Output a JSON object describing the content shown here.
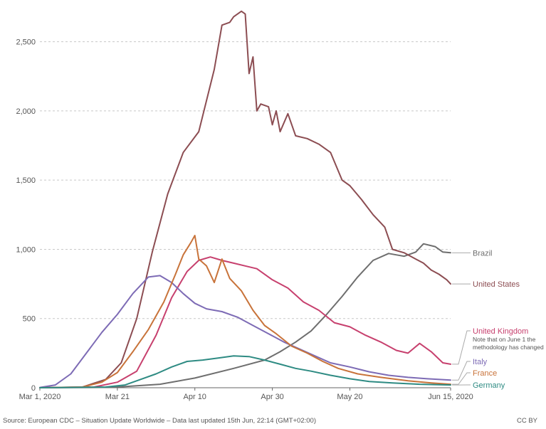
{
  "chart_data": {
    "type": "line",
    "title": "",
    "xlabel": "",
    "ylabel": "",
    "ylim": [
      0,
      2750
    ],
    "y_ticks": [
      0,
      500,
      1000,
      1500,
      2000,
      2500
    ],
    "y_tick_labels": [
      "0",
      "500",
      "1,000",
      "1,500",
      "2,000",
      "2,500"
    ],
    "x_range": [
      "2020-03-01",
      "2020-06-15"
    ],
    "x_ticks": [
      "2020-03-01",
      "2020-03-21",
      "2020-04-10",
      "2020-04-30",
      "2020-05-20",
      "2020-06-15"
    ],
    "x_tick_labels": [
      "Mar 1, 2020",
      "Mar 21",
      "Apr 10",
      "Apr 30",
      "May 20",
      "Jun 15, 2020"
    ],
    "grid": "horizontal dashed",
    "legend_placement": "right (direct labels at line ends)",
    "series": [
      {
        "name": "Brazil",
        "color": "#6e6e6e",
        "points": [
          [
            "2020-03-01",
            0
          ],
          [
            "2020-03-20",
            3
          ],
          [
            "2020-04-01",
            25
          ],
          [
            "2020-04-10",
            70
          ],
          [
            "2020-04-20",
            140
          ],
          [
            "2020-04-28",
            200
          ],
          [
            "2020-05-02",
            260
          ],
          [
            "2020-05-06",
            330
          ],
          [
            "2020-05-10",
            410
          ],
          [
            "2020-05-14",
            530
          ],
          [
            "2020-05-18",
            660
          ],
          [
            "2020-05-22",
            800
          ],
          [
            "2020-05-26",
            920
          ],
          [
            "2020-05-30",
            970
          ],
          [
            "2020-06-03",
            950
          ],
          [
            "2020-06-06",
            980
          ],
          [
            "2020-06-08",
            1040
          ],
          [
            "2020-06-11",
            1020
          ],
          [
            "2020-06-13",
            980
          ],
          [
            "2020-06-15",
            975
          ]
        ]
      },
      {
        "name": "United States",
        "color": "#8c4d52",
        "points": [
          [
            "2020-03-01",
            0
          ],
          [
            "2020-03-12",
            5
          ],
          [
            "2020-03-18",
            60
          ],
          [
            "2020-03-22",
            180
          ],
          [
            "2020-03-26",
            500
          ],
          [
            "2020-03-30",
            980
          ],
          [
            "2020-04-03",
            1400
          ],
          [
            "2020-04-07",
            1700
          ],
          [
            "2020-04-11",
            1850
          ],
          [
            "2020-04-15",
            2300
          ],
          [
            "2020-04-17",
            2620
          ],
          [
            "2020-04-19",
            2640
          ],
          [
            "2020-04-20",
            2680
          ],
          [
            "2020-04-22",
            2720
          ],
          [
            "2020-04-23",
            2700
          ],
          [
            "2020-04-24",
            2270
          ],
          [
            "2020-04-25",
            2390
          ],
          [
            "2020-04-26",
            2000
          ],
          [
            "2020-04-27",
            2050
          ],
          [
            "2020-04-29",
            2030
          ],
          [
            "2020-04-30",
            1900
          ],
          [
            "2020-05-01",
            2000
          ],
          [
            "2020-05-02",
            1850
          ],
          [
            "2020-05-04",
            1980
          ],
          [
            "2020-05-06",
            1820
          ],
          [
            "2020-05-09",
            1800
          ],
          [
            "2020-05-12",
            1760
          ],
          [
            "2020-05-15",
            1700
          ],
          [
            "2020-05-18",
            1500
          ],
          [
            "2020-05-20",
            1460
          ],
          [
            "2020-05-23",
            1360
          ],
          [
            "2020-05-26",
            1250
          ],
          [
            "2020-05-29",
            1160
          ],
          [
            "2020-05-31",
            1000
          ],
          [
            "2020-06-03",
            975
          ],
          [
            "2020-06-06",
            930
          ],
          [
            "2020-06-08",
            900
          ],
          [
            "2020-06-10",
            850
          ],
          [
            "2020-06-12",
            820
          ],
          [
            "2020-06-14",
            780
          ],
          [
            "2020-06-15",
            750
          ]
        ]
      },
      {
        "name": "United Kingdom",
        "color": "#c7406e",
        "points": [
          [
            "2020-03-01",
            0
          ],
          [
            "2020-03-15",
            5
          ],
          [
            "2020-03-21",
            40
          ],
          [
            "2020-03-26",
            120
          ],
          [
            "2020-03-31",
            380
          ],
          [
            "2020-04-04",
            650
          ],
          [
            "2020-04-08",
            840
          ],
          [
            "2020-04-11",
            920
          ],
          [
            "2020-04-14",
            945
          ],
          [
            "2020-04-17",
            920
          ],
          [
            "2020-04-20",
            900
          ],
          [
            "2020-04-23",
            880
          ],
          [
            "2020-04-26",
            860
          ],
          [
            "2020-04-30",
            780
          ],
          [
            "2020-05-04",
            720
          ],
          [
            "2020-05-08",
            620
          ],
          [
            "2020-05-12",
            560
          ],
          [
            "2020-05-16",
            470
          ],
          [
            "2020-05-20",
            440
          ],
          [
            "2020-05-24",
            380
          ],
          [
            "2020-05-28",
            330
          ],
          [
            "2020-06-01",
            270
          ],
          [
            "2020-06-04",
            250
          ],
          [
            "2020-06-07",
            320
          ],
          [
            "2020-06-10",
            260
          ],
          [
            "2020-06-13",
            180
          ],
          [
            "2020-06-15",
            170
          ]
        ]
      },
      {
        "name": "Italy",
        "color": "#7d6bb5",
        "points": [
          [
            "2020-03-01",
            2
          ],
          [
            "2020-03-05",
            20
          ],
          [
            "2020-03-09",
            100
          ],
          [
            "2020-03-13",
            250
          ],
          [
            "2020-03-17",
            400
          ],
          [
            "2020-03-21",
            530
          ],
          [
            "2020-03-25",
            680
          ],
          [
            "2020-03-29",
            800
          ],
          [
            "2020-04-01",
            810
          ],
          [
            "2020-04-04",
            760
          ],
          [
            "2020-04-07",
            680
          ],
          [
            "2020-04-10",
            610
          ],
          [
            "2020-04-13",
            570
          ],
          [
            "2020-04-17",
            550
          ],
          [
            "2020-04-21",
            510
          ],
          [
            "2020-04-25",
            450
          ],
          [
            "2020-04-29",
            390
          ],
          [
            "2020-05-03",
            330
          ],
          [
            "2020-05-07",
            280
          ],
          [
            "2020-05-11",
            230
          ],
          [
            "2020-05-15",
            180
          ],
          [
            "2020-05-20",
            150
          ],
          [
            "2020-05-25",
            115
          ],
          [
            "2020-05-30",
            90
          ],
          [
            "2020-06-04",
            75
          ],
          [
            "2020-06-09",
            65
          ],
          [
            "2020-06-15",
            55
          ]
        ]
      },
      {
        "name": "France",
        "color": "#c8733a",
        "points": [
          [
            "2020-03-01",
            0
          ],
          [
            "2020-03-12",
            5
          ],
          [
            "2020-03-17",
            40
          ],
          [
            "2020-03-21",
            110
          ],
          [
            "2020-03-25",
            260
          ],
          [
            "2020-03-29",
            420
          ],
          [
            "2020-04-02",
            620
          ],
          [
            "2020-04-05",
            820
          ],
          [
            "2020-04-07",
            960
          ],
          [
            "2020-04-09",
            1050
          ],
          [
            "2020-04-10",
            1100
          ],
          [
            "2020-04-11",
            930
          ],
          [
            "2020-04-13",
            880
          ],
          [
            "2020-04-15",
            760
          ],
          [
            "2020-04-17",
            930
          ],
          [
            "2020-04-19",
            790
          ],
          [
            "2020-04-22",
            700
          ],
          [
            "2020-04-25",
            560
          ],
          [
            "2020-04-28",
            450
          ],
          [
            "2020-05-01",
            390
          ],
          [
            "2020-05-05",
            300
          ],
          [
            "2020-05-09",
            250
          ],
          [
            "2020-05-13",
            190
          ],
          [
            "2020-05-17",
            140
          ],
          [
            "2020-05-22",
            100
          ],
          [
            "2020-05-28",
            75
          ],
          [
            "2020-06-04",
            50
          ],
          [
            "2020-06-10",
            35
          ],
          [
            "2020-06-15",
            25
          ]
        ]
      },
      {
        "name": "Germany",
        "color": "#2e8b83",
        "points": [
          [
            "2020-03-01",
            0
          ],
          [
            "2020-03-18",
            5
          ],
          [
            "2020-03-23",
            20
          ],
          [
            "2020-03-27",
            60
          ],
          [
            "2020-03-31",
            100
          ],
          [
            "2020-04-04",
            150
          ],
          [
            "2020-04-08",
            190
          ],
          [
            "2020-04-12",
            200
          ],
          [
            "2020-04-16",
            215
          ],
          [
            "2020-04-20",
            230
          ],
          [
            "2020-04-24",
            225
          ],
          [
            "2020-04-28",
            200
          ],
          [
            "2020-05-02",
            170
          ],
          [
            "2020-05-06",
            140
          ],
          [
            "2020-05-10",
            120
          ],
          [
            "2020-05-15",
            90
          ],
          [
            "2020-05-20",
            65
          ],
          [
            "2020-05-25",
            45
          ],
          [
            "2020-05-31",
            35
          ],
          [
            "2020-06-07",
            25
          ],
          [
            "2020-06-15",
            20
          ]
        ]
      }
    ],
    "annotations": [
      "Note that on June 1 the",
      "methodology has changed"
    ]
  },
  "footer": {
    "source": "Source: European CDC – Situation Update Worldwide – Data last updated 15th Jun, 22:14 (GMT+02:00)",
    "license": "CC BY"
  }
}
